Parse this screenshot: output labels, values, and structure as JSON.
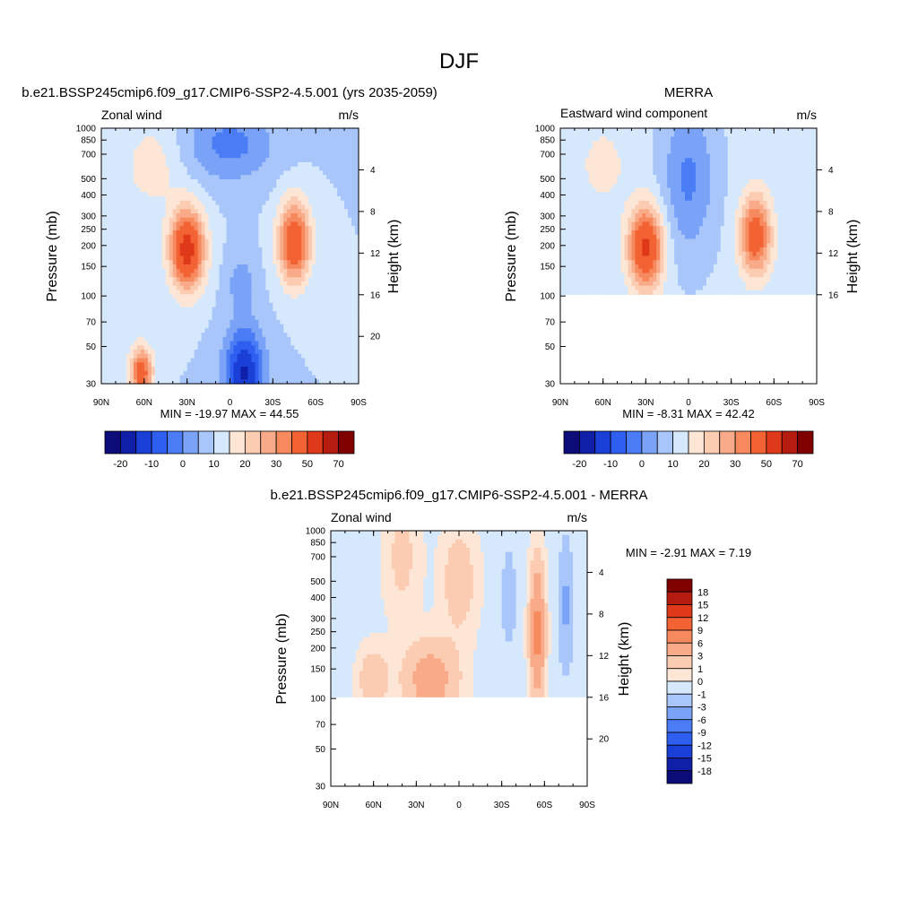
{
  "page_title": "DJF",
  "panels": [
    {
      "id": "model",
      "title": "b.e21.BSSP245cmip6.f09_g17.CMIP6-SSP2-4.5.001 (yrs 2035-2059)",
      "left_label": "Zonal wind",
      "right_label": "m/s",
      "ylabel": "Pressure (mb)",
      "ylabel_right": "Height (km)",
      "stats": "MIN = -19.97  MAX =  44.55"
    },
    {
      "id": "obs",
      "title": "MERRA",
      "left_label": "Eastward wind component",
      "right_label": "m/s",
      "ylabel": "Pressure (mb)",
      "ylabel_right": "Height (km)",
      "stats": "MIN =  -8.31  MAX =  42.42"
    },
    {
      "id": "diff",
      "title": "b.e21.BSSP245cmip6.f09_g17.CMIP6-SSP2-4.5.001 - MERRA",
      "left_label": "Zonal wind",
      "right_label": "m/s",
      "ylabel": "Pressure (mb)",
      "ylabel_right": "Height (km)",
      "stats": "MIN =  -2.91  MAX =   7.19"
    }
  ],
  "chart_data": [
    {
      "type": "heatmap",
      "panel": "model",
      "title": "b.e21.BSSP245cmip6.f09_g17.CMIP6-SSP2-4.5.001 (yrs 2035-2059)",
      "xlabel": "",
      "ylabel": "Pressure (mb)",
      "y2label": "Height (km)",
      "xlim": [
        90,
        -90
      ],
      "ylim": [
        1000,
        30
      ],
      "yscale": "log",
      "x_ticks": [
        "90N",
        "60N",
        "30N",
        "0",
        "30S",
        "60S",
        "90S"
      ],
      "y_ticks": [
        30,
        50,
        70,
        100,
        150,
        200,
        250,
        300,
        400,
        500,
        700,
        850,
        1000
      ],
      "y2_ticks": [
        4,
        8,
        12,
        16,
        20
      ],
      "colorbar_labels": [
        "-20",
        "-10",
        "0",
        "10",
        "20",
        "30",
        "50",
        "70"
      ],
      "min": -19.97,
      "max": 44.55,
      "features": [
        {
          "lat": 30,
          "p": 180,
          "value": 44.55,
          "kind": "subtropical jet core"
        },
        {
          "lat": -45,
          "p": 200,
          "value": 38,
          "kind": "southern jet core"
        },
        {
          "lat": 63,
          "p": 35,
          "value": 30,
          "kind": "stratospheric westerlies"
        },
        {
          "lat": -10,
          "p": 35,
          "value": -19.97,
          "kind": "tropical easterlies"
        }
      ]
    },
    {
      "type": "heatmap",
      "panel": "obs",
      "title": "MERRA",
      "xlabel": "",
      "ylabel": "Pressure (mb)",
      "y2label": "Height (km)",
      "xlim": [
        90,
        -90
      ],
      "ylim": [
        1000,
        30
      ],
      "data_top_pressure": 100,
      "yscale": "log",
      "x_ticks": [
        "90N",
        "60N",
        "30N",
        "0",
        "30S",
        "60S",
        "90S"
      ],
      "y_ticks": [
        30,
        50,
        70,
        100,
        150,
        200,
        250,
        300,
        400,
        500,
        700,
        850,
        1000
      ],
      "y2_ticks": [
        4,
        8,
        12,
        16
      ],
      "colorbar_labels": [
        "-20",
        "-10",
        "0",
        "10",
        "20",
        "30",
        "50",
        "70"
      ],
      "min": -8.31,
      "max": 42.42,
      "features": [
        {
          "lat": 30,
          "p": 190,
          "value": 42.42,
          "kind": "subtropical jet core"
        },
        {
          "lat": -47,
          "p": 220,
          "value": 35,
          "kind": "southern jet core"
        }
      ]
    },
    {
      "type": "heatmap",
      "panel": "diff",
      "title": "b.e21.BSSP245cmip6.f09_g17.CMIP6-SSP2-4.5.001 - MERRA",
      "xlabel": "",
      "ylabel": "Pressure (mb)",
      "y2label": "Height (km)",
      "xlim": [
        90,
        -90
      ],
      "ylim": [
        1000,
        30
      ],
      "data_top_pressure": 100,
      "yscale": "log",
      "x_ticks": [
        "90N",
        "60N",
        "30N",
        "0",
        "30S",
        "60S",
        "90S"
      ],
      "y_ticks": [
        30,
        50,
        70,
        100,
        150,
        200,
        250,
        300,
        400,
        500,
        700,
        850,
        1000
      ],
      "y2_ticks": [
        4,
        8,
        12,
        16,
        20
      ],
      "colorbar_labels": [
        "18",
        "15",
        "12",
        "9",
        "6",
        "3",
        "1",
        "0",
        "-1",
        "-3",
        "-6",
        "-9",
        "-12",
        "-15",
        "-18"
      ],
      "min": -2.91,
      "max": 7.19,
      "features": [
        {
          "lat": -55,
          "p": 250,
          "value": 7.19,
          "kind": "positive anomaly"
        },
        {
          "lat": 20,
          "p": 120,
          "value": 5,
          "kind": "positive anomaly"
        },
        {
          "lat": -75,
          "p": 350,
          "value": -2.91,
          "kind": "negative anomaly"
        }
      ]
    }
  ],
  "colors": {
    "ramp": [
      "#0c0c78",
      "#0f1fa8",
      "#1a3fd6",
      "#2f5ff0",
      "#4a7df5",
      "#7aa3f7",
      "#a9c6fa",
      "#d6e8fc",
      "#fde6d6",
      "#fcccb2",
      "#f9ab89",
      "#f68a5e",
      "#f26233",
      "#e0391a",
      "#b51c0f",
      "#800000"
    ],
    "diff_ramp": [
      "#800000",
      "#b51c0f",
      "#e0391a",
      "#f26233",
      "#f68a5e",
      "#f9ab89",
      "#fcccb2",
      "#fde6d6",
      "#d6e8fc",
      "#a9c6fa",
      "#7aa3f7",
      "#4a7df5",
      "#2f5ff0",
      "#1a3fd6",
      "#0f1fa8",
      "#0c0c78"
    ]
  }
}
